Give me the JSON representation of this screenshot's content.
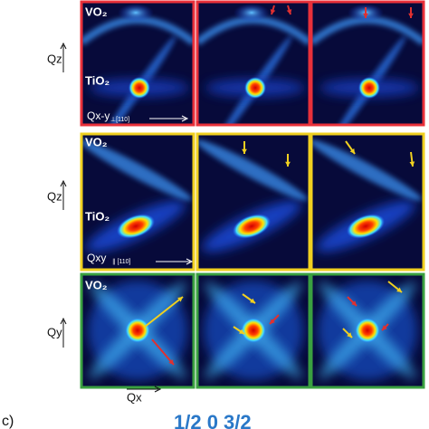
{
  "rows": [
    {
      "top_label": "VO₂",
      "bottom_label": "TiO₂",
      "inner_axis_label": "Qx-y",
      "inner_axis_subscript": "⊥[110]",
      "side_axis_label": "Qz"
    },
    {
      "top_label": "VO₂",
      "bottom_label": "TiO₂",
      "inner_axis_label": "Qxy",
      "inner_axis_subscript": "∥ [110]",
      "side_axis_label": "Qz"
    },
    {
      "top_label": "VO₂",
      "side_axis_label": "Qy"
    }
  ],
  "bottom_axis_label": "Qx",
  "panel_letter": "c)",
  "caption": "1/2 0 3/2"
}
